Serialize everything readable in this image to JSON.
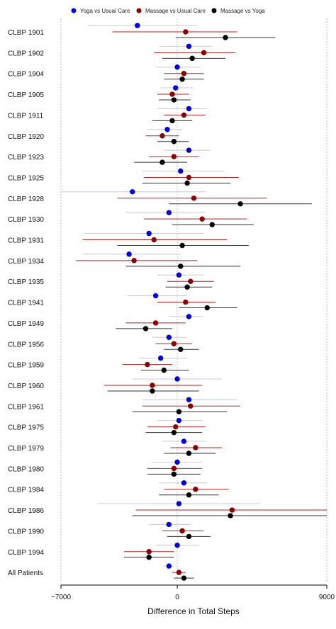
{
  "chart_data": {
    "type": "forest",
    "xlabel": "Difference in Total Steps",
    "xlim": [
      -7000,
      9000
    ],
    "x_ticks": [
      -7000,
      0,
      9000
    ],
    "reference_lines": [
      -7000,
      0,
      9000
    ],
    "legend_position": "top",
    "series": [
      {
        "name": "Yoga vs Usual Care",
        "color": "#0000dd",
        "ci_color": "#c8c8d8"
      },
      {
        "name": "Massage vs Usual Care",
        "color": "#8b0000",
        "ci_color": "#b22222"
      },
      {
        "name": "Massage vs Yoga",
        "color": "#000000",
        "ci_color": "#333333"
      }
    ],
    "rows": [
      {
        "label": "CLBP 1901",
        "est": [
          -2400,
          500,
          2900
        ],
        "lo": [
          -5400,
          -3900,
          -100
        ],
        "hi": [
          1200,
          3600,
          5900
        ]
      },
      {
        "label": "CLBP 1902",
        "est": [
          700,
          1600,
          900
        ],
        "lo": [
          -1100,
          -1400,
          -900
        ],
        "hi": [
          2100,
          3500,
          2900
        ]
      },
      {
        "label": "CLBP 1904",
        "est": [
          0,
          400,
          300
        ],
        "lo": [
          -1300,
          -800,
          -800
        ],
        "hi": [
          1400,
          1600,
          1600
        ]
      },
      {
        "label": "CLBP 1905",
        "est": [
          -100,
          -300,
          -200
        ],
        "lo": [
          -1000,
          -1200,
          -1100
        ],
        "hi": [
          1000,
          700,
          800
        ]
      },
      {
        "label": "CLBP 1911",
        "est": [
          700,
          400,
          -300
        ],
        "lo": [
          -1200,
          -800,
          -1500
        ],
        "hi": [
          1800,
          1700,
          900
        ]
      },
      {
        "label": "CLBP 1920",
        "est": [
          -600,
          -900,
          -200
        ],
        "lo": [
          -1800,
          -1900,
          -1200
        ],
        "hi": [
          300,
          100,
          700
        ]
      },
      {
        "label": "CLBP 1923",
        "est": [
          700,
          -200,
          -900
        ],
        "lo": [
          -800,
          -1700,
          -2600
        ],
        "hi": [
          2000,
          1300,
          600
        ]
      },
      {
        "label": "CLBP 1925",
        "est": [
          200,
          700,
          600
        ],
        "lo": [
          -2100,
          -2000,
          -2100
        ],
        "hi": [
          2800,
          3700,
          3200
        ]
      },
      {
        "label": "CLBP 1928",
        "est": [
          -2700,
          1000,
          3800
        ],
        "lo": [
          -7000,
          -3600,
          -500
        ],
        "hi": [
          1700,
          5400,
          8100
        ]
      },
      {
        "label": "CLBP 1930",
        "est": [
          -500,
          1500,
          2100
        ],
        "lo": [
          -3100,
          -2000,
          -300
        ],
        "hi": [
          1700,
          4200,
          4600
        ]
      },
      {
        "label": "CLBP 1931",
        "est": [
          -1700,
          -1400,
          300
        ],
        "lo": [
          -5600,
          -5700,
          -3600
        ],
        "hi": [
          1600,
          3000,
          4300
        ]
      },
      {
        "label": "CLBP 1934",
        "est": [
          -2900,
          -2600,
          200
        ],
        "lo": [
          -5700,
          -6100,
          -3100
        ],
        "hi": [
          200,
          1200,
          3800
        ]
      },
      {
        "label": "CLBP 1935",
        "est": [
          100,
          800,
          600
        ],
        "lo": [
          -1200,
          -600,
          -700
        ],
        "hi": [
          1600,
          2200,
          2100
        ]
      },
      {
        "label": "CLBP 1941",
        "est": [
          -1300,
          500,
          1800
        ],
        "lo": [
          -3000,
          -1200,
          100
        ],
        "hi": [
          600,
          2300,
          3600
        ]
      },
      {
        "label": "CLBP 1949",
        "est": [
          700,
          -1300,
          -1900
        ],
        "lo": [
          -500,
          -3100,
          -3700
        ],
        "hi": [
          1600,
          500,
          -300
        ]
      },
      {
        "label": "CLBP 1956",
        "est": [
          -500,
          -200,
          200
        ],
        "lo": [
          -1500,
          -1300,
          -800
        ],
        "hi": [
          600,
          900,
          1300
        ]
      },
      {
        "label": "CLBP 1959",
        "est": [
          -1000,
          -1800,
          -800
        ],
        "lo": [
          -2300,
          -3300,
          -2200
        ],
        "hi": [
          600,
          -300,
          700
        ]
      },
      {
        "label": "CLBP 1960",
        "est": [
          0,
          -1500,
          -1500
        ],
        "lo": [
          -2700,
          -4400,
          -4200
        ],
        "hi": [
          2700,
          1500,
          1300
        ]
      },
      {
        "label": "CLBP 1961",
        "est": [
          700,
          800,
          100
        ],
        "lo": [
          -2100,
          -2100,
          -2700
        ],
        "hi": [
          3600,
          3800,
          3000
        ]
      },
      {
        "label": "CLBP 1975",
        "est": [
          100,
          -100,
          -200
        ],
        "lo": [
          -1200,
          -1800,
          -1900
        ],
        "hi": [
          1500,
          1700,
          1500
        ]
      },
      {
        "label": "CLBP 1979",
        "est": [
          400,
          1100,
          700
        ],
        "lo": [
          -900,
          -400,
          -800
        ],
        "hi": [
          1700,
          2700,
          2300
        ]
      },
      {
        "label": "CLBP 1980",
        "est": [
          0,
          -200,
          -200
        ],
        "lo": [
          -1500,
          -1800,
          -1800
        ],
        "hi": [
          1500,
          1500,
          1400
        ]
      },
      {
        "label": "CLBP 1984",
        "est": [
          400,
          1100,
          700
        ],
        "lo": [
          -1100,
          -800,
          -1100
        ],
        "hi": [
          1800,
          3100,
          2500
        ]
      },
      {
        "label": "CLBP 1986",
        "est": [
          100,
          3300,
          3200
        ],
        "lo": [
          -4800,
          -2500,
          -2700
        ],
        "hi": [
          5000,
          9000,
          9000
        ]
      },
      {
        "label": "CLBP 1990",
        "est": [
          -500,
          300,
          700
        ],
        "lo": [
          -1700,
          -900,
          -600
        ],
        "hi": [
          800,
          1600,
          2000
        ]
      },
      {
        "label": "CLBP 1994",
        "est": [
          0,
          -1700,
          -1700
        ],
        "lo": [
          -1300,
          -3200,
          -3200
        ],
        "hi": [
          1300,
          -200,
          -200
        ]
      },
      {
        "label": "All Patients",
        "est": [
          -500,
          100,
          400
        ],
        "lo": [
          -800,
          -300,
          -200
        ],
        "hi": [
          -200,
          500,
          1000
        ]
      }
    ]
  }
}
